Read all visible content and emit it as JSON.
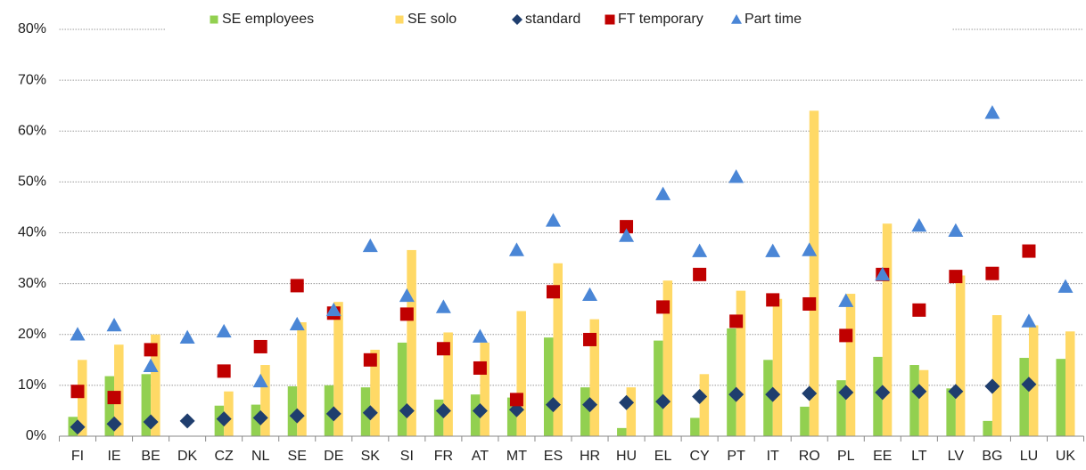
{
  "chart_data": {
    "type": "bar",
    "categories": [
      "FI",
      "IE",
      "BE",
      "DK",
      "CZ",
      "NL",
      "SE",
      "DE",
      "SK",
      "SI",
      "FR",
      "AT",
      "MT",
      "ES",
      "HR",
      "HU",
      "EL",
      "CY",
      "PT",
      "IT",
      "RO",
      "PL",
      "EE",
      "LT",
      "LV",
      "BG",
      "LU",
      "UK"
    ],
    "series": [
      {
        "name": "SE employees",
        "type": "bar",
        "marker": "square",
        "color": "#92d050",
        "values": [
          3.8,
          11.8,
          12.2,
          null,
          6,
          6.2,
          9.8,
          10,
          9.6,
          18.4,
          7.2,
          8.2,
          7.6,
          19.4,
          9.6,
          1.6,
          18.8,
          3.6,
          21.2,
          15,
          5.8,
          11,
          15.6,
          14,
          9.4,
          3,
          15.4,
          15.2
        ]
      },
      {
        "name": "SE solo",
        "type": "bar",
        "marker": "square",
        "color": "#ffd966",
        "values": [
          15,
          18,
          20,
          null,
          8.8,
          14,
          22.4,
          26.4,
          17,
          36.6,
          20.4,
          18.4,
          24.6,
          34,
          23,
          9.6,
          30.6,
          12.2,
          28.6,
          27,
          64,
          28,
          41.8,
          13,
          31.6,
          23.8,
          21.8,
          20.6
        ]
      },
      {
        "name": "standard",
        "type": "scatter",
        "marker": "diamond",
        "color": "#1f3e6e",
        "values": [
          1.8,
          2.4,
          2.8,
          3.0,
          3.4,
          3.6,
          4.0,
          4.4,
          4.6,
          5.0,
          5.0,
          5.0,
          5.2,
          6.2,
          6.2,
          6.6,
          6.8,
          7.8,
          8.2,
          8.2,
          8.4,
          8.6,
          8.6,
          8.8,
          8.8,
          9.8,
          10.2,
          null
        ]
      },
      {
        "name": "FT temporary",
        "type": "scatter",
        "marker": "square",
        "color": "#c00000",
        "values": [
          8.8,
          7.6,
          17,
          null,
          12.8,
          17.6,
          29.6,
          24.2,
          15,
          24,
          17.2,
          13.4,
          7.2,
          28.4,
          19,
          41.2,
          25.4,
          31.8,
          22.6,
          26.8,
          26,
          19.8,
          31.8,
          24.8,
          31.4,
          32,
          36.4,
          null
        ]
      },
      {
        "name": "Part time",
        "type": "scatter",
        "marker": "triangle",
        "color": "#4a86d6",
        "values": [
          20,
          21.8,
          13.8,
          19.4,
          20.6,
          10.8,
          22,
          24.8,
          37.4,
          27.6,
          25.4,
          19.6,
          36.6,
          42.4,
          27.8,
          39.4,
          47.6,
          36.4,
          51,
          36.4,
          36.6,
          26.6,
          31.8,
          41.4,
          40.4,
          63.6,
          22.6,
          29.4
        ]
      }
    ],
    "ylim": [
      0,
      80
    ],
    "yticks": [
      {
        "value": 0,
        "label": "0%"
      },
      {
        "value": 10,
        "label": "10%"
      },
      {
        "value": 20,
        "label": "20%"
      },
      {
        "value": 30,
        "label": "30%"
      },
      {
        "value": 40,
        "label": "40%"
      },
      {
        "value": 50,
        "label": "50%"
      },
      {
        "value": 60,
        "label": "60%"
      },
      {
        "value": 70,
        "label": "70%"
      },
      {
        "value": 80,
        "label": "80%"
      }
    ],
    "grid": true,
    "legend": "top"
  }
}
